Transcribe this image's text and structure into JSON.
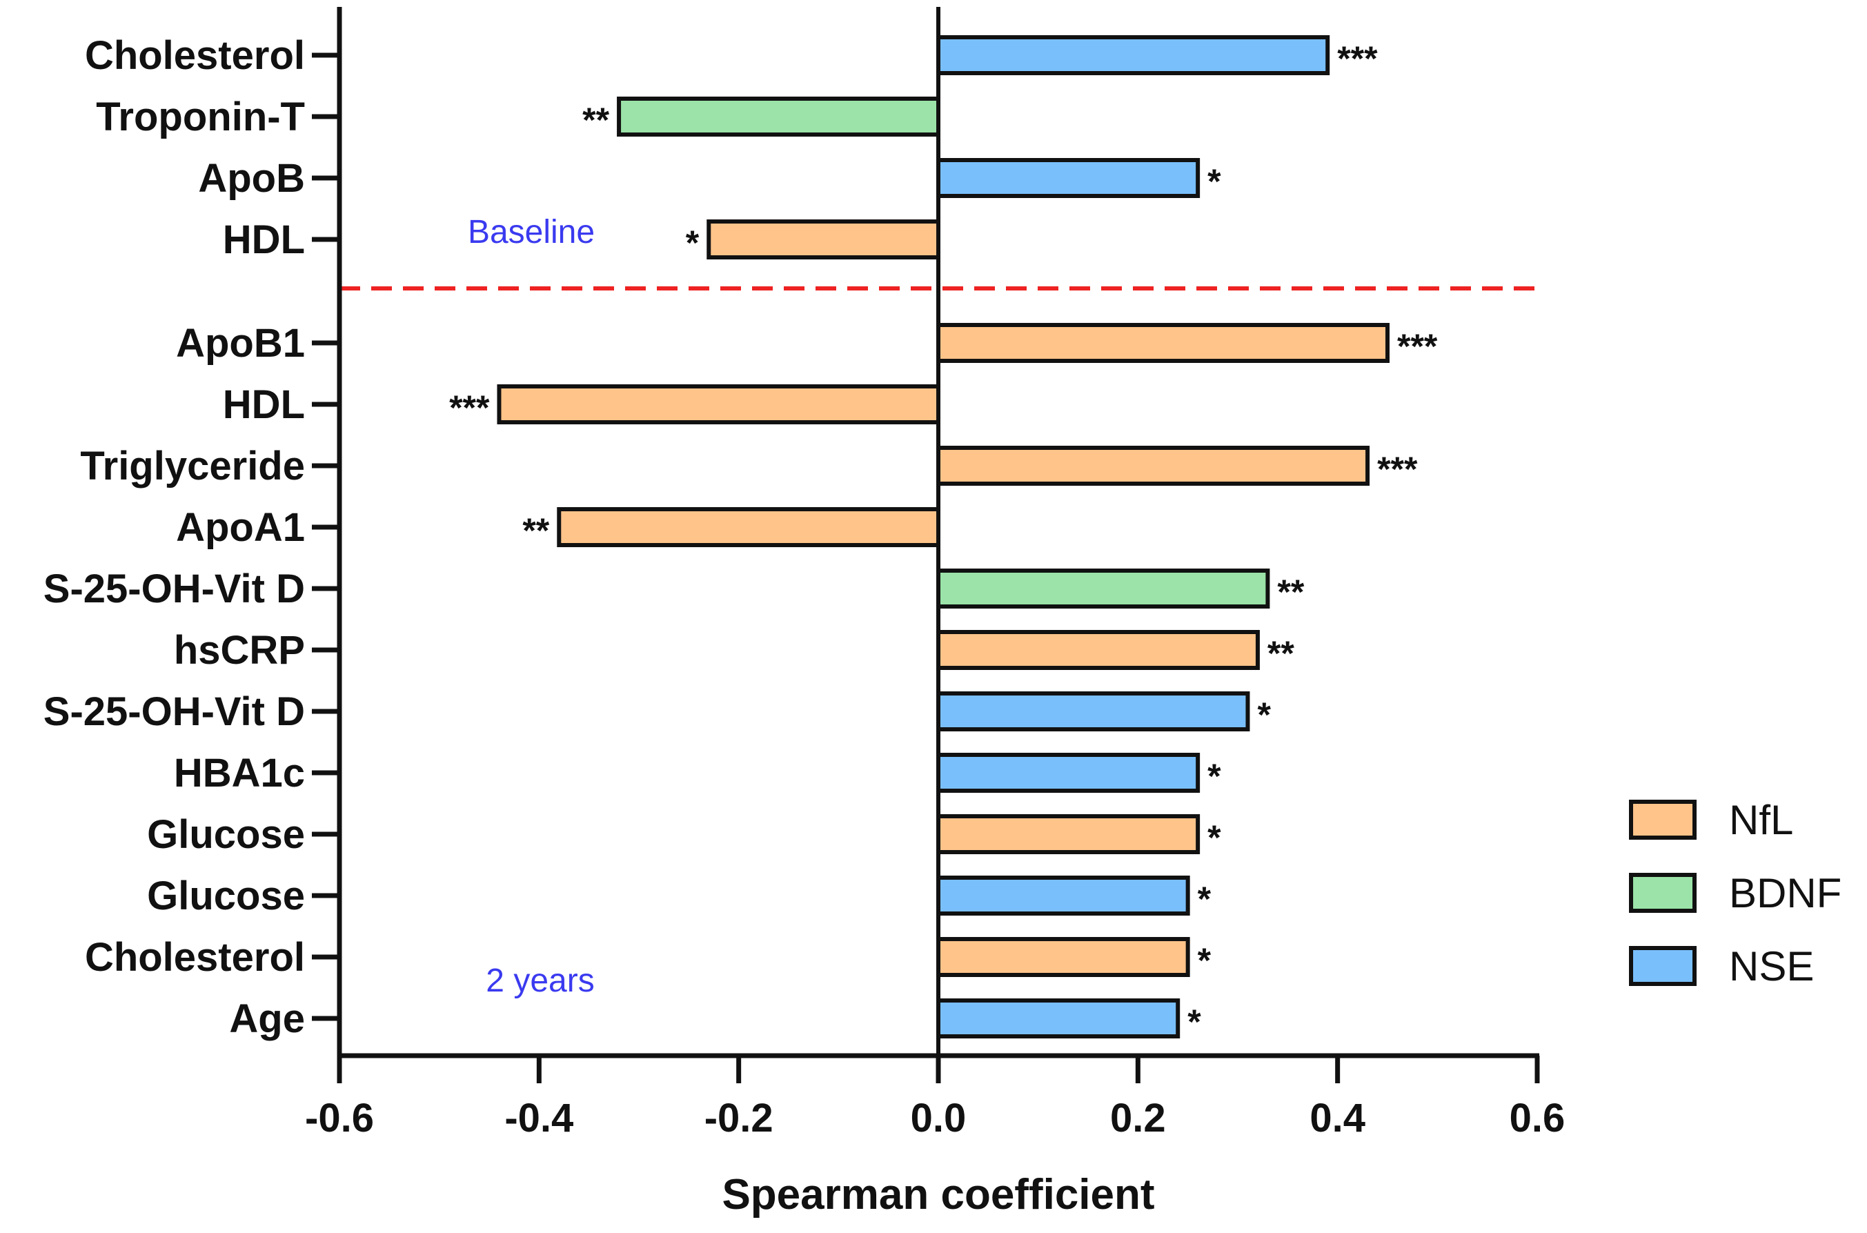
{
  "chart_data": {
    "type": "bar",
    "orientation": "horizontal",
    "title": "",
    "xlabel": "Spearman coefficient",
    "ylabel": "",
    "xlim": [
      -0.6,
      0.6
    ],
    "xticks": [
      "-0.6",
      "-0.4",
      "-0.2",
      "0.0",
      "0.2",
      "0.4",
      "0.6"
    ],
    "grid": false,
    "legend_position": "right",
    "series_colors": {
      "NfL": "#FFC48A",
      "BDNF": "#9BE3A8",
      "NSE": "#79BFFB"
    },
    "legend": [
      "NfL",
      "BDNF",
      "NSE"
    ],
    "divider_color": "#EE2222",
    "annotations": {
      "top": "Baseline",
      "bottom": "2 years"
    },
    "groups": [
      {
        "name": "Baseline",
        "bars": [
          {
            "label": "Cholesterol",
            "series": "NSE",
            "value": 0.39,
            "sig": "***"
          },
          {
            "label": "Troponin-T",
            "series": "BDNF",
            "value": -0.32,
            "sig": "**"
          },
          {
            "label": "ApoB",
            "series": "NSE",
            "value": 0.26,
            "sig": "*"
          },
          {
            "label": "HDL",
            "series": "NfL",
            "value": -0.23,
            "sig": "*"
          }
        ]
      },
      {
        "name": "2 years",
        "bars": [
          {
            "label": "ApoB1",
            "series": "NfL",
            "value": 0.45,
            "sig": "***"
          },
          {
            "label": "HDL",
            "series": "NfL",
            "value": -0.44,
            "sig": "***"
          },
          {
            "label": "Triglyceride",
            "series": "NfL",
            "value": 0.43,
            "sig": "***"
          },
          {
            "label": "ApoA1",
            "series": "NfL",
            "value": -0.38,
            "sig": "**"
          },
          {
            "label": "S-25-OH-Vit D",
            "series": "BDNF",
            "value": 0.33,
            "sig": "**"
          },
          {
            "label": "hsCRP",
            "series": "NfL",
            "value": 0.32,
            "sig": "**"
          },
          {
            "label": "S-25-OH-Vit D",
            "series": "NSE",
            "value": 0.31,
            "sig": "*"
          },
          {
            "label": "HBA1c",
            "series": "NSE",
            "value": 0.26,
            "sig": "*"
          },
          {
            "label": "Glucose",
            "series": "NfL",
            "value": 0.26,
            "sig": "*"
          },
          {
            "label": "Glucose",
            "series": "NSE",
            "value": 0.25,
            "sig": "*"
          },
          {
            "label": "Cholesterol",
            "series": "NfL",
            "value": 0.25,
            "sig": "*"
          },
          {
            "label": "Age",
            "series": "NSE",
            "value": 0.24,
            "sig": "*"
          }
        ]
      }
    ]
  }
}
